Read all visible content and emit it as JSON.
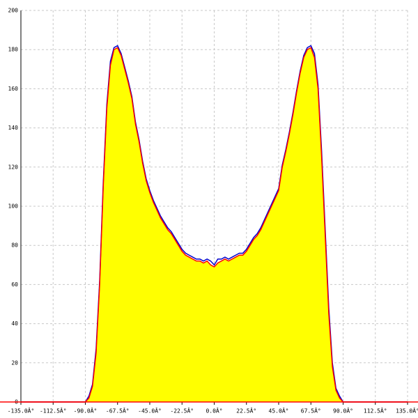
{
  "chart_data": {
    "type": "area",
    "x": [
      -135,
      -90,
      -87.5,
      -85,
      -82.5,
      -80,
      -77.5,
      -75,
      -72.5,
      -70,
      -67.5,
      -65,
      -62.5,
      -60,
      -57.5,
      -55,
      -52.5,
      -50,
      -47.5,
      -45,
      -42.5,
      -40,
      -37.5,
      -35,
      -32.5,
      -30,
      -27.5,
      -25,
      -22.5,
      -20,
      -17.5,
      -15,
      -12.5,
      -10,
      -7.5,
      -5,
      -2.5,
      0,
      2.5,
      5,
      7.5,
      10,
      12.5,
      15,
      17.5,
      20,
      22.5,
      25,
      27.5,
      30,
      32.5,
      35,
      37.5,
      40,
      42.5,
      45,
      47.5,
      50,
      52.5,
      55,
      57.5,
      60,
      62.5,
      65,
      67.5,
      70,
      72.5,
      75,
      77.5,
      80,
      82.5,
      85,
      87.5,
      90,
      135
    ],
    "series": [
      {
        "color": "#0000cc",
        "values": [
          0,
          0,
          3,
          9,
          27,
          62,
          112,
          152,
          174,
          181,
          182,
          178,
          171,
          164,
          156,
          143,
          134,
          123,
          114,
          108,
          103,
          99,
          95,
          92,
          89,
          87,
          84,
          81,
          78,
          76,
          75,
          74,
          73,
          73,
          72,
          73,
          72,
          70,
          73,
          73,
          74,
          73,
          74,
          75,
          76,
          76,
          78,
          81,
          84,
          86,
          89,
          93,
          97,
          101,
          105,
          109,
          121,
          129,
          138,
          148,
          159,
          169,
          177,
          181,
          182,
          178,
          162,
          128,
          88,
          48,
          20,
          7,
          3,
          0,
          0
        ]
      },
      {
        "color": "#ff0000",
        "values": [
          0,
          0,
          2,
          8,
          25,
          60,
          110,
          150,
          172,
          180,
          181,
          177,
          170,
          163,
          155,
          142,
          133,
          122,
          113,
          107,
          102,
          98,
          94,
          91,
          88,
          86,
          83,
          80,
          77,
          75,
          74,
          73,
          72,
          72,
          71,
          72,
          70,
          69,
          71,
          72,
          73,
          72,
          73,
          74,
          75,
          75,
          77,
          80,
          83,
          85,
          88,
          92,
          96,
          100,
          104,
          108,
          120,
          128,
          137,
          147,
          158,
          168,
          176,
          180,
          181,
          176,
          160,
          125,
          85,
          45,
          18,
          6,
          2,
          0,
          0
        ]
      }
    ],
    "fill_color": "#ffff00",
    "xlim": [
      -135,
      135
    ],
    "xticks": [
      {
        "value": -135,
        "label": "-135.0Â°"
      },
      {
        "value": -112.5,
        "label": "-112.5Â°"
      },
      {
        "value": -90,
        "label": "-90.0Â°"
      },
      {
        "value": -67.5,
        "label": "-67.5Â°"
      },
      {
        "value": -45,
        "label": "-45.0Â°"
      },
      {
        "value": -22.5,
        "label": "-22.5Â°"
      },
      {
        "value": 0,
        "label": "0.0Â°"
      },
      {
        "value": 22.5,
        "label": "22.5Â°"
      },
      {
        "value": 45,
        "label": "45.0Â°"
      },
      {
        "value": 67.5,
        "label": "67.5Â°"
      },
      {
        "value": 90,
        "label": "90.0Â°"
      },
      {
        "value": 112.5,
        "label": "112.5Â°"
      },
      {
        "value": 135,
        "label": "135.0Â°"
      }
    ],
    "ylim": [
      0,
      200
    ],
    "yticks": [
      0,
      20,
      40,
      60,
      80,
      100,
      120,
      140,
      160,
      180,
      200
    ],
    "grid": true
  }
}
